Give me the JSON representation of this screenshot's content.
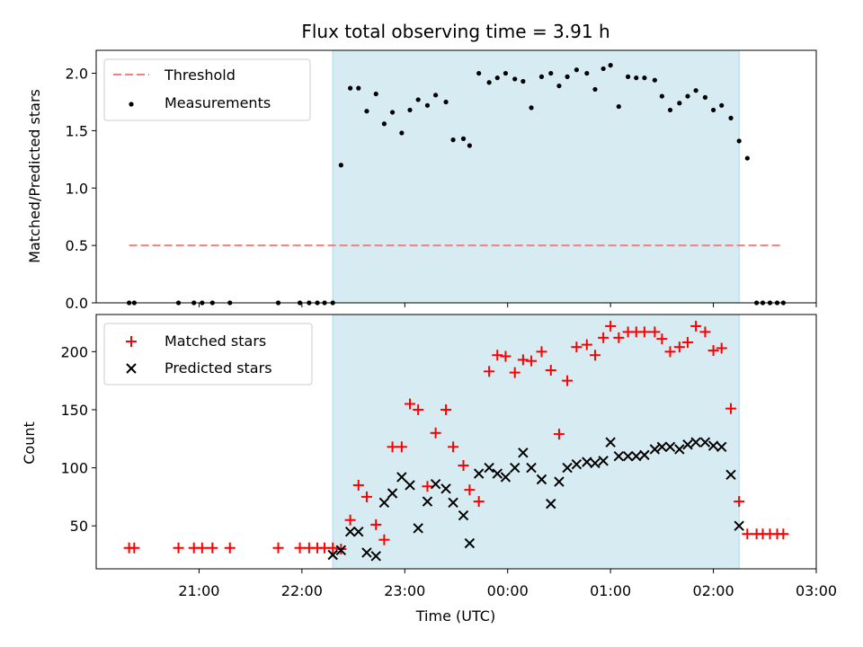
{
  "chart_data": {
    "type": "scatter",
    "title": "Flux total observing time = 3.91 h",
    "xlabel": "Time (UTC)",
    "x_ticks": [
      "21:00",
      "22:00",
      "23:00",
      "00:00",
      "01:00",
      "02:00",
      "03:00"
    ],
    "x_tick_hours": [
      21,
      22,
      23,
      24,
      25,
      26,
      27
    ],
    "xlim_hours": [
      20.0,
      27.0
    ],
    "shaded_span_hours": [
      22.3,
      26.25
    ],
    "shade_color": "#add8e6",
    "panels": [
      {
        "ylabel": "Matched/Predicted stars",
        "ylim": [
          0,
          2.2
        ],
        "y_ticks": [
          0.0,
          0.5,
          1.0,
          1.5,
          2.0
        ],
        "y_tick_labels": [
          "0.0",
          "0.5",
          "1.0",
          "1.5",
          "2.0"
        ],
        "legend_position": "top-left",
        "threshold": {
          "name": "Threshold",
          "value": 0.5,
          "x_range_hours": [
            20.32,
            26.68
          ],
          "color": "#f08080"
        },
        "series": [
          {
            "name": "Measurements",
            "marker": "dot",
            "color": "#000000",
            "x": [
              20.32,
              20.37,
              20.8,
              20.95,
              21.03,
              21.13,
              21.3,
              21.77,
              21.98,
              22.07,
              22.15,
              22.22,
              22.3,
              22.38,
              22.47,
              22.55,
              22.63,
              22.72,
              22.8,
              22.88,
              22.97,
              23.05,
              23.13,
              23.22,
              23.3,
              23.4,
              23.47,
              23.57,
              23.63,
              23.72,
              23.82,
              23.9,
              23.98,
              24.07,
              24.15,
              24.23,
              24.33,
              24.42,
              24.5,
              24.58,
              24.67,
              24.77,
              24.85,
              24.93,
              25.0,
              25.08,
              25.17,
              25.25,
              25.33,
              25.43,
              25.5,
              25.58,
              25.67,
              25.75,
              25.83,
              25.92,
              26.0,
              26.08,
              26.17,
              26.25,
              26.33,
              26.42,
              26.48,
              26.55,
              26.62,
              26.68
            ],
            "y": [
              0,
              0,
              0,
              0,
              0,
              0,
              0,
              0,
              0,
              0,
              0,
              0,
              0,
              1.2,
              1.87,
              1.87,
              1.67,
              1.82,
              1.56,
              1.66,
              1.48,
              1.68,
              1.77,
              1.72,
              1.81,
              1.75,
              1.42,
              1.43,
              1.37,
              2.0,
              1.92,
              1.96,
              2.0,
              1.95,
              1.93,
              1.7,
              1.97,
              2.0,
              1.89,
              1.97,
              2.03,
              2.0,
              1.86,
              2.04,
              2.07,
              1.71,
              1.97,
              1.96,
              1.96,
              1.94,
              1.8,
              1.68,
              1.74,
              1.8,
              1.85,
              1.79,
              1.68,
              1.72,
              1.61,
              1.41,
              1.26,
              0,
              0,
              0,
              0,
              0
            ]
          }
        ]
      },
      {
        "ylabel": "Count",
        "ylim": [
          13,
          232
        ],
        "y_ticks": [
          50,
          100,
          150,
          200
        ],
        "y_tick_labels": [
          "50",
          "100",
          "150",
          "200"
        ],
        "legend_position": "top-left",
        "series": [
          {
            "name": "Matched stars",
            "marker": "plus",
            "color": "#ff0000",
            "x": [
              20.32,
              20.37,
              20.8,
              20.95,
              21.03,
              21.13,
              21.3,
              21.77,
              21.98,
              22.07,
              22.15,
              22.22,
              22.3,
              22.38,
              22.47,
              22.55,
              22.63,
              22.72,
              22.8,
              22.88,
              22.97,
              23.05,
              23.13,
              23.22,
              23.3,
              23.4,
              23.47,
              23.57,
              23.63,
              23.72,
              23.82,
              23.9,
              23.98,
              24.07,
              24.15,
              24.23,
              24.33,
              24.42,
              24.5,
              24.58,
              24.67,
              24.77,
              24.85,
              24.93,
              25.0,
              25.08,
              25.17,
              25.25,
              25.33,
              25.43,
              25.5,
              25.58,
              25.67,
              25.75,
              25.83,
              25.92,
              26.0,
              26.08,
              26.17,
              26.25,
              26.33,
              26.42,
              26.48,
              26.55,
              26.62,
              26.68
            ],
            "y": [
              31,
              31,
              31,
              31,
              31,
              31,
              31,
              31,
              31,
              31,
              31,
              31,
              31,
              30,
              55,
              85,
              75,
              51,
              38,
              118,
              118,
              155,
              150,
              84,
              130,
              150,
              118,
              102,
              81,
              71,
              183,
              197,
              196,
              182,
              193,
              192,
              200,
              184,
              129,
              175,
              204,
              206,
              197,
              212,
              222,
              212,
              217,
              217,
              217,
              217,
              211,
              200,
              204,
              208,
              222,
              217,
              201,
              203,
              151,
              71,
              43,
              43,
              43,
              43,
              43,
              43
            ]
          },
          {
            "name": "Predicted stars",
            "marker": "x",
            "color": "#000000",
            "x": [
              22.3,
              22.38,
              22.47,
              22.55,
              22.63,
              22.72,
              22.8,
              22.88,
              22.97,
              23.05,
              23.13,
              23.22,
              23.3,
              23.4,
              23.47,
              23.57,
              23.63,
              23.72,
              23.82,
              23.9,
              23.98,
              24.07,
              24.15,
              24.23,
              24.33,
              24.42,
              24.5,
              24.58,
              24.67,
              24.77,
              24.85,
              24.93,
              25.0,
              25.08,
              25.17,
              25.25,
              25.33,
              25.43,
              25.5,
              25.58,
              25.67,
              25.75,
              25.83,
              25.92,
              26.0,
              26.08,
              26.17,
              26.25
            ],
            "y": [
              25,
              29,
              45,
              45,
              27,
              24,
              70,
              78,
              92,
              85,
              48,
              71,
              86,
              82,
              70,
              59,
              35,
              95,
              100,
              95,
              92,
              100,
              113,
              100,
              90,
              69,
              88,
              100,
              103,
              105,
              104,
              106,
              122,
              110,
              110,
              110,
              111,
              116,
              118,
              118,
              116,
              120,
              122,
              122,
              119,
              118,
              94,
              50
            ]
          }
        ]
      }
    ]
  }
}
